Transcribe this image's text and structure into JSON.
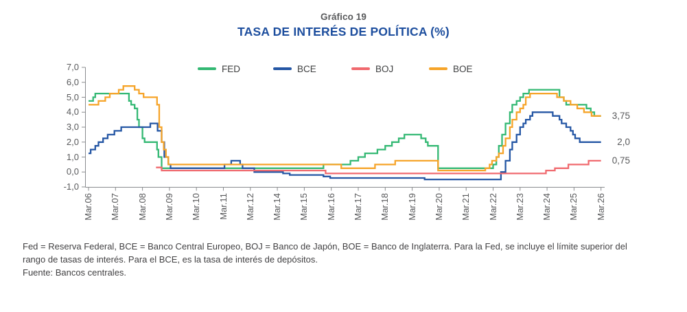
{
  "figure": {
    "pretitle": "Gráfico 19",
    "title": "TASA DE INTERÉS DE POLÍTICA (%)"
  },
  "chart_data": {
    "type": "line",
    "title": "TASA DE INTERÉS DE POLÍTICA (%)",
    "xlabel": "",
    "ylabel": "",
    "ylim": [
      -1.0,
      7.0
    ],
    "grid": false,
    "legend_position": "top-inside",
    "x_tick_labels": [
      "Mar.06",
      "Mar.07",
      "Mar.08",
      "Mar.09",
      "Mar.10",
      "Mar.11",
      "Mar.12",
      "Mar.14",
      "Mar.15",
      "Mar.16",
      "Mar.17",
      "Mar.18",
      "Mar.19",
      "Mar.20",
      "Mar.21",
      "Mar.22",
      "Mar.23",
      "Mar.24",
      "Mar.25",
      "Mar.26"
    ],
    "y_tick_labels": [
      "7,0",
      "6,0",
      "5,0",
      "4,0",
      "3,0",
      "2,0",
      "1,0",
      "0,0",
      "-1,0"
    ],
    "y_tick_values": [
      7,
      6,
      5,
      4,
      3,
      2,
      1,
      0,
      -1
    ],
    "end_labels": [
      {
        "text": "3,75",
        "value": 3.75
      },
      {
        "text": "2,0",
        "value": 2.0
      },
      {
        "text": "0,75",
        "value": 0.75
      }
    ],
    "series": [
      {
        "name": "FED",
        "color": "#33B873",
        "points": [
          [
            2006.25,
            4.75
          ],
          [
            2006.42,
            5.0
          ],
          [
            2006.5,
            5.25
          ],
          [
            2007.75,
            4.75
          ],
          [
            2007.83,
            4.5
          ],
          [
            2007.96,
            4.25
          ],
          [
            2008.06,
            3.5
          ],
          [
            2008.12,
            3.0
          ],
          [
            2008.25,
            2.25
          ],
          [
            2008.33,
            2.0
          ],
          [
            2008.79,
            1.5
          ],
          [
            2008.84,
            1.0
          ],
          [
            2008.96,
            0.25
          ],
          [
            2015.96,
            0.5
          ],
          [
            2016.96,
            0.75
          ],
          [
            2017.25,
            1.0
          ],
          [
            2017.5,
            1.25
          ],
          [
            2017.96,
            1.5
          ],
          [
            2018.25,
            1.75
          ],
          [
            2018.5,
            2.0
          ],
          [
            2018.75,
            2.25
          ],
          [
            2018.96,
            2.5
          ],
          [
            2019.58,
            2.25
          ],
          [
            2019.75,
            2.0
          ],
          [
            2019.83,
            1.75
          ],
          [
            2020.21,
            0.25
          ],
          [
            2022.25,
            0.5
          ],
          [
            2022.37,
            1.0
          ],
          [
            2022.46,
            1.75
          ],
          [
            2022.58,
            2.5
          ],
          [
            2022.71,
            3.25
          ],
          [
            2022.87,
            4.0
          ],
          [
            2022.96,
            4.5
          ],
          [
            2023.12,
            4.75
          ],
          [
            2023.25,
            5.0
          ],
          [
            2023.37,
            5.25
          ],
          [
            2023.58,
            5.5
          ],
          [
            2024.71,
            5.0
          ],
          [
            2024.87,
            4.75
          ],
          [
            2024.96,
            4.5
          ],
          [
            2025.71,
            4.25
          ],
          [
            2025.87,
            4.0
          ],
          [
            2026.0,
            3.75
          ],
          [
            2026.25,
            3.75
          ]
        ]
      },
      {
        "name": "BCE",
        "color": "#2456A4",
        "points": [
          [
            2006.25,
            1.25
          ],
          [
            2006.33,
            1.5
          ],
          [
            2006.5,
            1.75
          ],
          [
            2006.62,
            2.0
          ],
          [
            2006.79,
            2.25
          ],
          [
            2006.96,
            2.5
          ],
          [
            2007.21,
            2.75
          ],
          [
            2007.46,
            3.0
          ],
          [
            2008.54,
            3.25
          ],
          [
            2008.81,
            2.75
          ],
          [
            2008.96,
            2.0
          ],
          [
            2009.06,
            1.0
          ],
          [
            2009.21,
            0.5
          ],
          [
            2009.29,
            0.25
          ],
          [
            2011.29,
            0.5
          ],
          [
            2011.54,
            0.75
          ],
          [
            2011.87,
            0.5
          ],
          [
            2011.96,
            0.25
          ],
          [
            2012.54,
            0.0
          ],
          [
            2014.46,
            -0.1
          ],
          [
            2014.71,
            -0.2
          ],
          [
            2015.96,
            -0.3
          ],
          [
            2016.21,
            -0.4
          ],
          [
            2019.71,
            -0.5
          ],
          [
            2022.54,
            0.0
          ],
          [
            2022.71,
            0.75
          ],
          [
            2022.87,
            1.5
          ],
          [
            2022.96,
            2.0
          ],
          [
            2023.12,
            2.5
          ],
          [
            2023.25,
            3.0
          ],
          [
            2023.37,
            3.25
          ],
          [
            2023.46,
            3.5
          ],
          [
            2023.62,
            3.75
          ],
          [
            2023.71,
            4.0
          ],
          [
            2024.46,
            3.75
          ],
          [
            2024.71,
            3.5
          ],
          [
            2024.79,
            3.25
          ],
          [
            2024.96,
            3.0
          ],
          [
            2025.12,
            2.75
          ],
          [
            2025.21,
            2.5
          ],
          [
            2025.29,
            2.25
          ],
          [
            2025.46,
            2.0
          ],
          [
            2026.25,
            2.0
          ]
        ]
      },
      {
        "name": "BOJ",
        "color": "#F0696E",
        "points": [
          [
            2008.75,
            0.3
          ],
          [
            2008.96,
            0.1
          ],
          [
            2016.04,
            -0.1
          ],
          [
            2024.21,
            0.1
          ],
          [
            2024.54,
            0.25
          ],
          [
            2025.04,
            0.5
          ],
          [
            2025.79,
            0.75
          ],
          [
            2026.25,
            0.75
          ]
        ]
      },
      {
        "name": "BOE",
        "color": "#F6A429",
        "points": [
          [
            2006.25,
            4.5
          ],
          [
            2006.62,
            4.75
          ],
          [
            2006.87,
            5.0
          ],
          [
            2007.04,
            5.25
          ],
          [
            2007.37,
            5.5
          ],
          [
            2007.54,
            5.75
          ],
          [
            2007.96,
            5.5
          ],
          [
            2008.12,
            5.25
          ],
          [
            2008.29,
            5.0
          ],
          [
            2008.79,
            4.5
          ],
          [
            2008.87,
            3.0
          ],
          [
            2008.96,
            2.0
          ],
          [
            2009.04,
            1.5
          ],
          [
            2009.12,
            1.0
          ],
          [
            2009.21,
            0.5
          ],
          [
            2016.62,
            0.25
          ],
          [
            2017.87,
            0.5
          ],
          [
            2018.62,
            0.75
          ],
          [
            2020.21,
            0.1
          ],
          [
            2021.96,
            0.25
          ],
          [
            2022.12,
            0.5
          ],
          [
            2022.21,
            0.75
          ],
          [
            2022.37,
            1.0
          ],
          [
            2022.46,
            1.25
          ],
          [
            2022.62,
            1.75
          ],
          [
            2022.71,
            2.25
          ],
          [
            2022.87,
            3.0
          ],
          [
            2022.96,
            3.5
          ],
          [
            2023.12,
            4.0
          ],
          [
            2023.25,
            4.25
          ],
          [
            2023.37,
            4.5
          ],
          [
            2023.46,
            5.0
          ],
          [
            2023.62,
            5.25
          ],
          [
            2024.62,
            5.0
          ],
          [
            2024.87,
            4.75
          ],
          [
            2025.12,
            4.5
          ],
          [
            2025.37,
            4.25
          ],
          [
            2025.62,
            4.0
          ],
          [
            2025.9,
            3.75
          ],
          [
            2026.25,
            3.75
          ]
        ]
      }
    ]
  },
  "footnotes": {
    "note_lines": [
      "Fed = Reserva Federal, BCE = Banco Central Europeo, BOJ = Banco de Japón, BOE = Banco de Inglaterra. Para la Fed, se incluye el límite superior del",
      "rango de tasas de interés. Para el BCE, es la tasa de interés de depósitos."
    ],
    "source": "Fuente: Bancos centrales."
  }
}
